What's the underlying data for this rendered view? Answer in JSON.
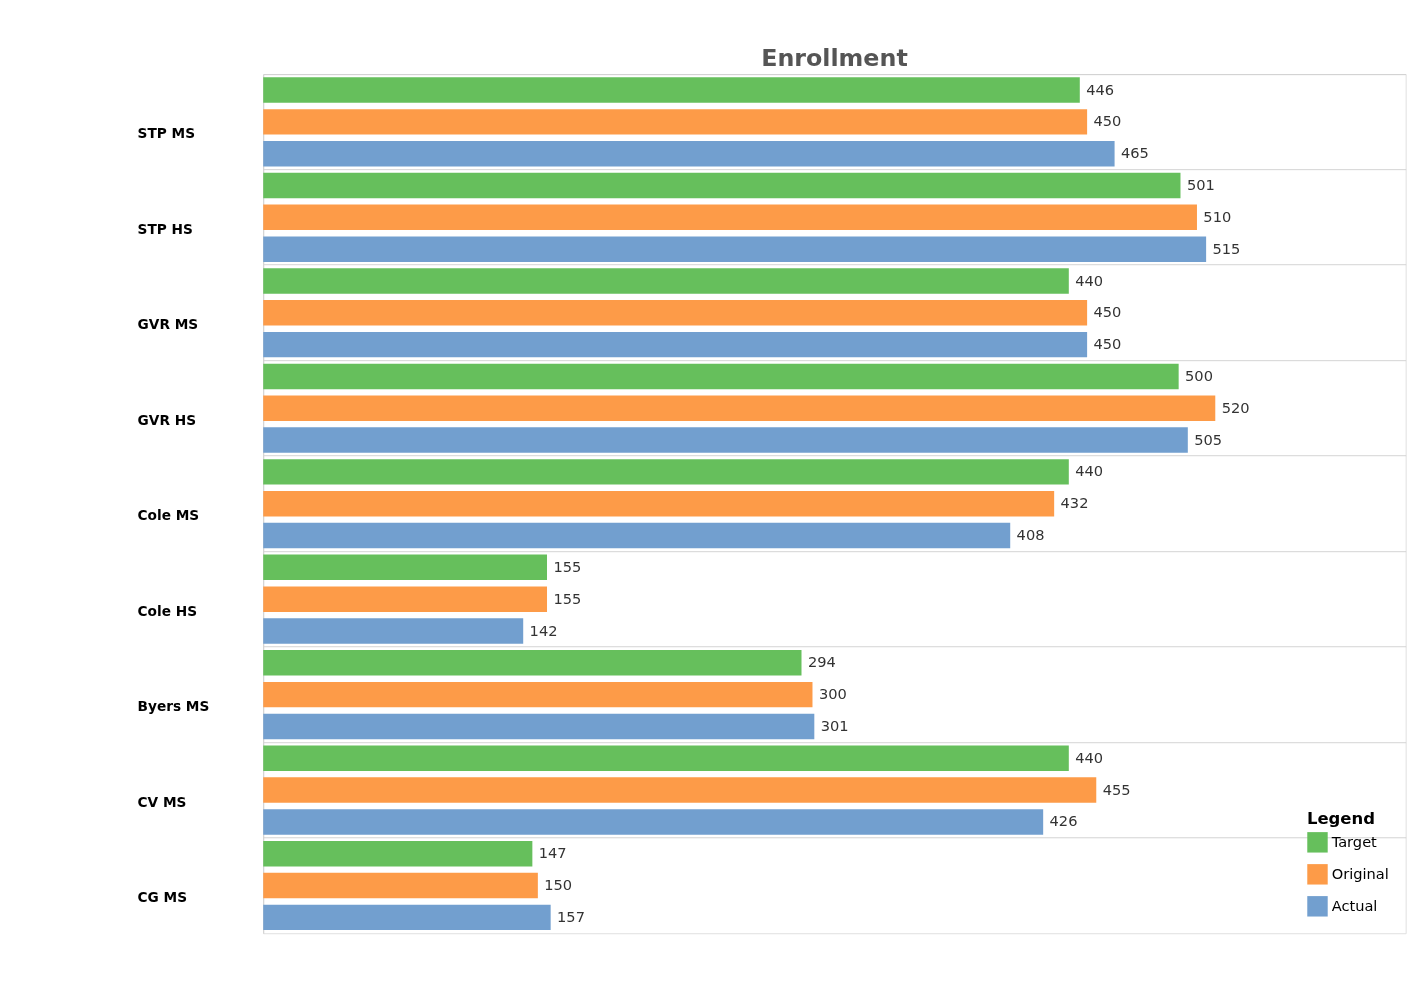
{
  "chart_data": {
    "type": "bar",
    "orientation": "horizontal",
    "title": "Enrollment",
    "legend_title": "Legend",
    "legend": "bottom right",
    "data_labels": true,
    "grid": false,
    "categories": [
      "STP MS",
      "STP HS",
      "GVR MS",
      "GVR HS",
      "Cole MS",
      "Cole HS",
      "Byers MS",
      "CV MS",
      "CG MS"
    ],
    "series": [
      {
        "name": "Target",
        "color": "#66bf5c",
        "values": [
          446,
          501,
          440,
          500,
          440,
          155,
          294,
          440,
          147
        ]
      },
      {
        "name": "Original",
        "color": "#fd9b48",
        "values": [
          450,
          510,
          450,
          520,
          432,
          155,
          300,
          455,
          150
        ]
      },
      {
        "name": "Actual",
        "color": "#729fcf",
        "values": [
          465,
          515,
          450,
          505,
          408,
          142,
          301,
          426,
          157
        ]
      }
    ]
  }
}
